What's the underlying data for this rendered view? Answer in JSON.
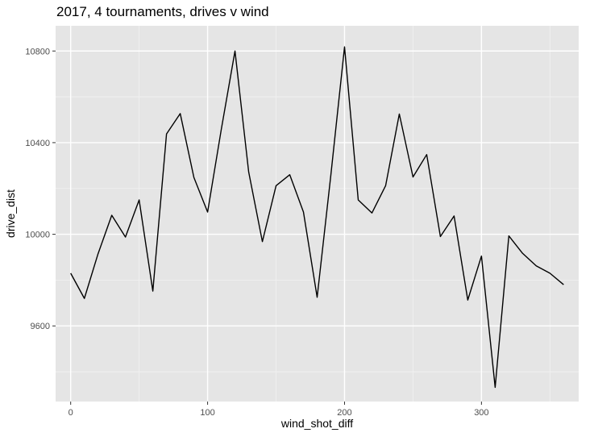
{
  "chart_data": {
    "type": "line",
    "title": "2017, 4 tournaments, drives v wind",
    "xlabel": "wind_shot_diff",
    "ylabel": "drive_dist",
    "xlim": [
      -11,
      371
    ],
    "ylim": [
      9270,
      10910
    ],
    "x_ticks": [
      0,
      100,
      200,
      300
    ],
    "y_ticks": [
      9600,
      10000,
      10400,
      10800
    ],
    "x_minor": [
      50,
      150,
      250,
      350
    ],
    "y_minor": [
      9400,
      9800,
      10200,
      10600
    ],
    "grid": true,
    "panel_background": "#e5e5e5",
    "grid_major_color": "#ffffff",
    "grid_minor_color": "#f2f2f2",
    "line_color": "#000000",
    "series": [
      {
        "x": [
          0,
          10,
          20,
          30,
          40,
          50,
          60,
          70,
          80,
          90,
          100,
          110,
          120,
          130,
          140,
          150,
          160,
          170,
          180,
          190,
          200,
          210,
          220,
          230,
          240,
          250,
          260,
          270,
          280,
          290,
          300,
          310,
          320,
          330,
          340,
          350,
          360
        ],
        "values": [
          9830,
          9720,
          9915,
          10083,
          9988,
          10150,
          9752,
          10438,
          10527,
          10248,
          10097,
          10458,
          10800,
          10272,
          9968,
          10212,
          10260,
          10097,
          9725,
          10258,
          10818,
          10150,
          10093,
          10212,
          10525,
          10250,
          10348,
          9990,
          10080,
          9713,
          9905,
          9332,
          9993,
          9917,
          9862,
          9830,
          9780
        ]
      }
    ]
  }
}
